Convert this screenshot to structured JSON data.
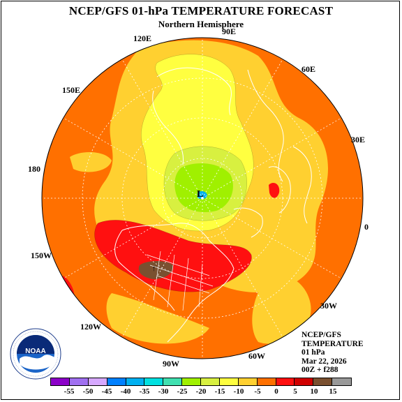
{
  "title": "NCEP/GFS 01-hPa TEMPERATURE FORECAST",
  "subtitle": "Northern Hemisphere",
  "longitude_labels": [
    "90E",
    "60E",
    "30E",
    "0",
    "30W",
    "60W",
    "90W",
    "120W",
    "150W",
    "180",
    "150E",
    "120E"
  ],
  "low_marker": "L",
  "info_block": [
    "NCEP/GFS",
    "TEMPERATURE",
    "01 hPa",
    "Mar 22, 2026",
    "00Z + f288"
  ],
  "colorbar": {
    "ticks": [
      "-55",
      "-50",
      "-45",
      "-40",
      "-35",
      "-30",
      "-25",
      "-20",
      "-15",
      "-10",
      "-5",
      "0",
      "5",
      "10",
      "15"
    ],
    "colors": [
      "#8b00c8",
      "#a070f0",
      "#d6a8ff",
      "#0080ff",
      "#00b0f0",
      "#00e0e0",
      "#40e0b0",
      "#a0f000",
      "#d8f040",
      "#ffff40",
      "#ffd030",
      "#ff7000",
      "#ff1010",
      "#d00000",
      "#7a5030",
      "#999999"
    ]
  },
  "logo_text": "NOAA",
  "logo_ring_text": "NATIONAL OCEANIC AND ATMOSPHERIC ADMINISTRATION · U.S. DEPARTMENT OF COMMERCE"
}
